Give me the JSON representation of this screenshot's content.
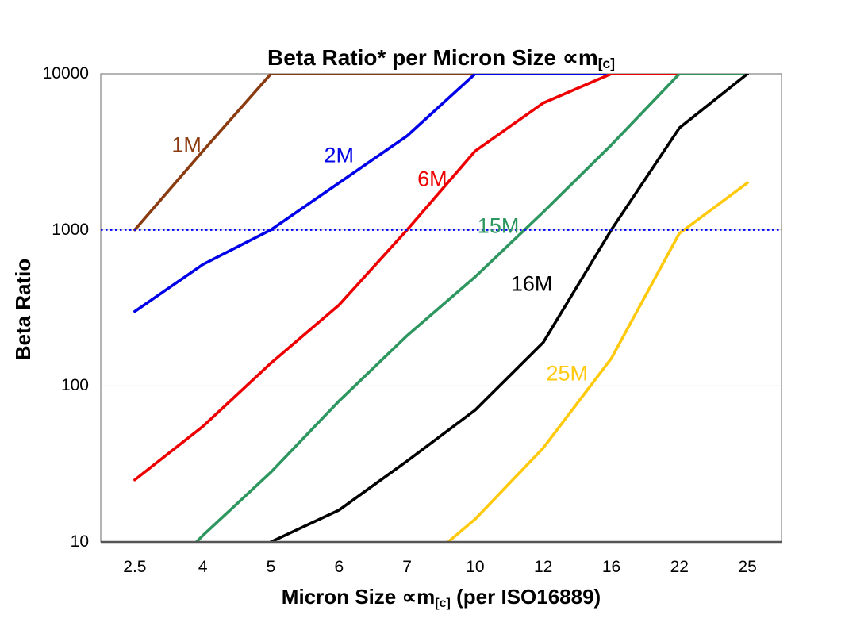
{
  "title": {
    "main": "Beta Ratio* per Micron Size ∝m",
    "sub": "[c]"
  },
  "y_axis": {
    "label": "Beta Ratio"
  },
  "x_axis": {
    "label_part1": "Micron Size ∝m",
    "label_sub": "[c]",
    "label_part2": " (per ISO16889)"
  },
  "chart_data": {
    "type": "line",
    "y_scale": "log",
    "ylim": [
      10,
      10000
    ],
    "y_ticks": [
      10000,
      1000,
      100,
      10
    ],
    "categories": [
      "2.5",
      "4",
      "5",
      "6",
      "7",
      "10",
      "12",
      "16",
      "22",
      "25"
    ],
    "series": [
      {
        "name": "1M",
        "color": "#8A3B10",
        "values": [
          1000,
          3200,
          10000,
          10000,
          10000,
          10000,
          10000,
          10000,
          10000,
          10000
        ]
      },
      {
        "name": "2M",
        "color": "#0202E8",
        "values": [
          300,
          600,
          1000,
          2000,
          4000,
          10000,
          10000,
          10000,
          10000,
          10000
        ]
      },
      {
        "name": "6M",
        "color": "#EE0000",
        "values": [
          25,
          55,
          140,
          330,
          1000,
          3200,
          6500,
          10000,
          10000,
          10000
        ]
      },
      {
        "name": "15M",
        "color": "#2E9760",
        "values": [
          4,
          11,
          28,
          80,
          210,
          500,
          1300,
          3500,
          10000,
          10000
        ]
      },
      {
        "name": "16M",
        "color": "#000000",
        "values": [
          null,
          4,
          10,
          16,
          33,
          70,
          190,
          1000,
          4500,
          10000
        ]
      },
      {
        "name": "25M",
        "color": "#FFC90E",
        "values": [
          null,
          null,
          null,
          null,
          6,
          14,
          40,
          150,
          950,
          2000
        ]
      }
    ],
    "reference_line": {
      "value": 1000,
      "color": "#0000FF",
      "style": "dotted"
    },
    "gridlines": {
      "color": "#CFCFCF",
      "values": [
        100,
        1000
      ]
    },
    "annotations": [
      {
        "text": "1M",
        "color": "#8A3B10",
        "xi": 0.76,
        "value": 3500
      },
      {
        "text": "2M",
        "color": "#0202E8",
        "xi": 3.0,
        "value": 3000
      },
      {
        "text": "6M",
        "color": "#EE0000",
        "xi": 4.37,
        "value": 2100
      },
      {
        "text": "15M",
        "color": "#2E9760",
        "xi": 5.34,
        "value": 1050
      },
      {
        "text": "16M",
        "color": "#000000",
        "xi": 5.83,
        "value": 450
      },
      {
        "text": "25M",
        "color": "#FFC90E",
        "xi": 6.35,
        "value": 120
      }
    ],
    "title": "Beta Ratio* per Micron Size ∝m[c]",
    "xlabel": "Micron Size ∝m[c] (per ISO16889)",
    "ylabel": "Beta Ratio"
  }
}
